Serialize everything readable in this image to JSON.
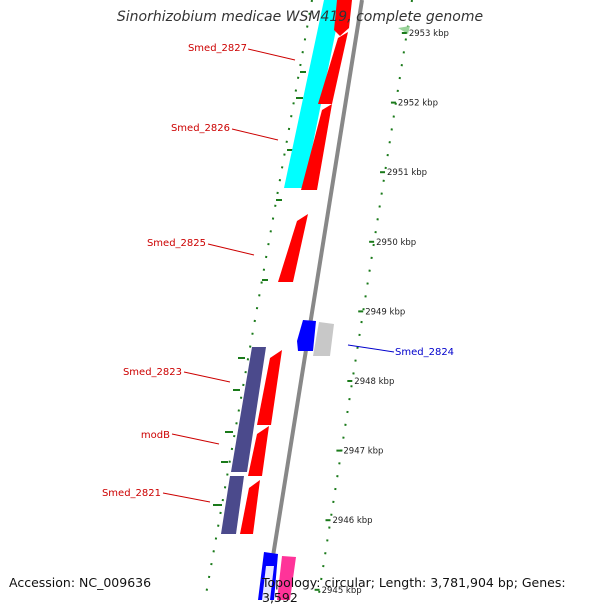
{
  "title": "Sinorhizobium medicae WSM419, complete genome",
  "footer": {
    "accession": "Accession: NC_009636",
    "topology": "Topology: circular; Length: 3,781,904 bp; Genes: 3,592"
  },
  "colors": {
    "forward_gene": "#ff0000",
    "reverse_gene": "#0000ff",
    "cog_cyan": "#00ffff",
    "cog_purple": "#4b4a8c",
    "cog_grey": "#c8c8c8",
    "cog_pink": "#ff3399",
    "backbone": "#888888",
    "tick_green": "#1a7a1a",
    "forward_label": "#cc0000",
    "reverse_label": "#0000cc"
  },
  "ruler": [
    {
      "kbp": 2953,
      "label": "2953 kbp"
    },
    {
      "kbp": 2952,
      "label": "2952 kbp"
    },
    {
      "kbp": 2951,
      "label": "2951 kbp"
    },
    {
      "kbp": 2950,
      "label": "2950 kbp"
    },
    {
      "kbp": 2949,
      "label": "2949 kbp"
    },
    {
      "kbp": 2948,
      "label": "2948 kbp"
    },
    {
      "kbp": 2947,
      "label": "2947 kbp"
    },
    {
      "kbp": 2946,
      "label": "2946 kbp"
    },
    {
      "kbp": 2945,
      "label": "2945 kbp"
    }
  ],
  "gene_labels": [
    {
      "text": "Smed_2827",
      "strand": "forward"
    },
    {
      "text": "Smed_2826",
      "strand": "forward"
    },
    {
      "text": "Smed_2825",
      "strand": "forward"
    },
    {
      "text": "Smed_2824",
      "strand": "reverse"
    },
    {
      "text": "Smed_2823",
      "strand": "forward"
    },
    {
      "text": "modB",
      "strand": "forward"
    },
    {
      "text": "Smed_2821",
      "strand": "forward"
    }
  ]
}
